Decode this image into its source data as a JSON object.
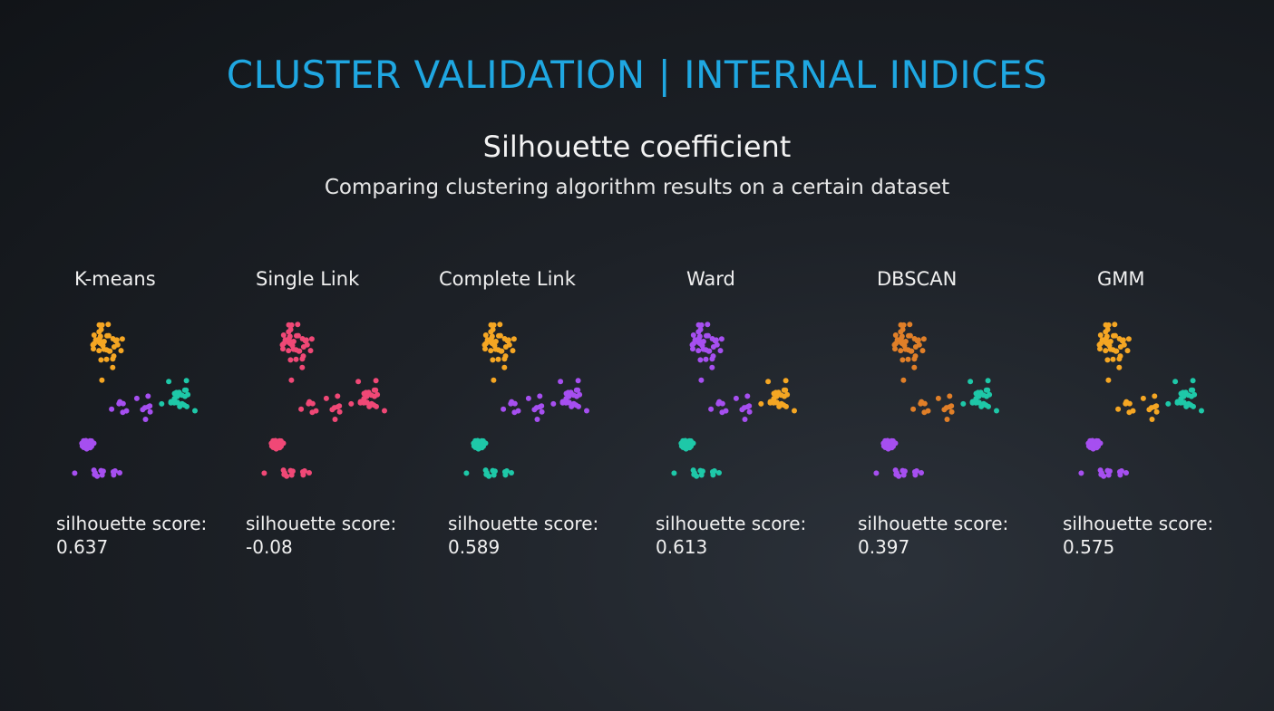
{
  "title": "CLUSTER VALIDATION | INTERNAL INDICES",
  "subtitle": "Silhouette coefficient",
  "caption": "Comparing clustering algorithm results on a certain dataset",
  "colors": {
    "orange": "#f5a623",
    "teal": "#1ec8a8",
    "purple": "#a64ff0",
    "pink": "#f04876",
    "dark_orange": "#e07f28",
    "title": "#1fa7e1"
  },
  "panels": [
    {
      "name": "K-means",
      "score_label": "silhouette score:",
      "score": "0.637",
      "colors": {
        "top": "orange",
        "right": "teal",
        "blob": "purple",
        "bottom": "purple",
        "mid": "purple"
      }
    },
    {
      "name": "Single Link",
      "score_label": "silhouette score:",
      "score": "-0.08",
      "colors": {
        "top": "pink",
        "right": "pink",
        "blob": "pink",
        "bottom": "pink",
        "mid": "pink"
      }
    },
    {
      "name": "Complete Link",
      "score_label": "silhouette score:",
      "score": "0.589",
      "colors": {
        "top": "orange",
        "right": "purple",
        "blob": "teal",
        "bottom": "teal",
        "mid": "purple"
      }
    },
    {
      "name": "Ward",
      "score_label": "silhouette score:",
      "score": "0.613",
      "colors": {
        "top": "purple",
        "right": "orange",
        "blob": "teal",
        "bottom": "teal",
        "mid": "purple"
      }
    },
    {
      "name": "DBSCAN",
      "score_label": "silhouette score:",
      "score": "0.397",
      "colors": {
        "top": "dark_orange",
        "right": "teal",
        "blob": "purple",
        "bottom": "purple",
        "mid": "dark_orange"
      }
    },
    {
      "name": "GMM",
      "score_label": "silhouette score:",
      "score": "0.575",
      "colors": {
        "top": "orange",
        "right": "teal",
        "blob": "purple",
        "bottom": "purple",
        "mid": "orange"
      }
    }
  ]
}
